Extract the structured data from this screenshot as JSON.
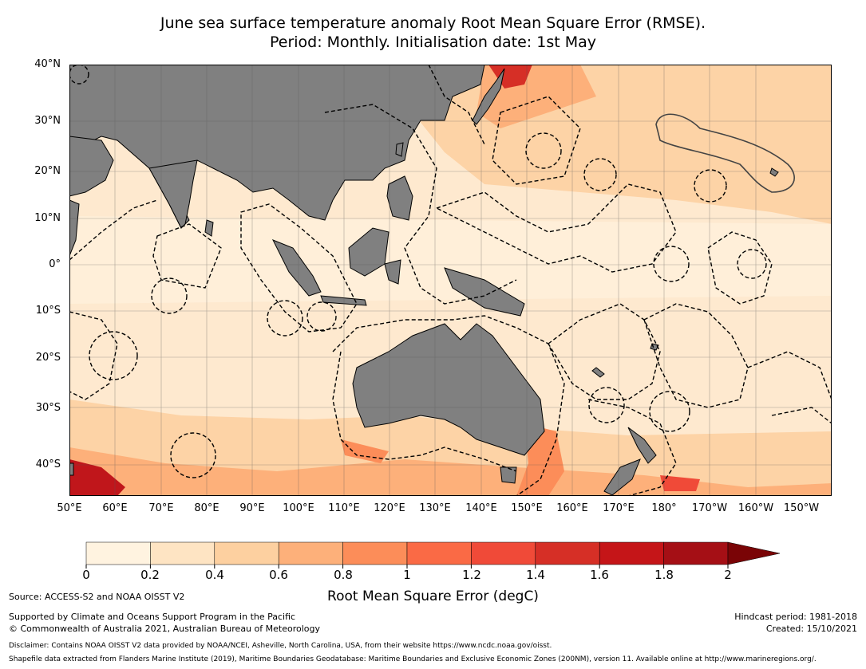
{
  "title_line1": "June sea surface temperature anomaly Root Mean Square Error (RMSE).",
  "title_line2": "Period: Monthly. Initialisation date: 1st May",
  "lat_labels": [
    "40°N",
    "30°N",
    "20°N",
    "10°N",
    "0°",
    "10°S",
    "20°S",
    "30°S",
    "40°S"
  ],
  "lon_labels": [
    "50°E",
    "60°E",
    "70°E",
    "80°E",
    "90°E",
    "100°E",
    "110°E",
    "120°E",
    "130°E",
    "140°E",
    "150°E",
    "160°E",
    "170°E",
    "180°",
    "170°W",
    "160°W",
    "150°W"
  ],
  "colorbar": {
    "label": "Root Mean Square Error (degC)",
    "ticks": [
      "0",
      "0.2",
      "0.4",
      "0.6",
      "0.8",
      "1",
      "1.2",
      "1.4",
      "1.6",
      "1.8",
      "2"
    ],
    "colors": [
      "#fff3e0",
      "#fee4c3",
      "#fdd0a0",
      "#fdb07a",
      "#fc8d59",
      "#fa6a45",
      "#f04a38",
      "#d62f26",
      "#c51518",
      "#a50f15",
      "#7a0406"
    ],
    "extend": "max"
  },
  "map_colors": {
    "land": "#808080",
    "ocean_low": "#fee9cf",
    "ocean_mid": "#fdd3a6",
    "ocean_high": "#fb8f5c",
    "ocean_max": "#c0161b"
  },
  "footer": {
    "source": "Source: ACCESS-S2 and NOAA OISST V2",
    "supported": "Supported by Climate and Oceans Support Program in the Pacific",
    "copyright": "© Commonwealth of Australia 2021, Australian Bureau of Meteorology",
    "hindcast": "Hindcast period: 1981-2018",
    "created": "Created: 15/10/2021",
    "disclaimer": "Disclaimer: Contains NOAA OISST V2 data provided by NOAA/NCEI, Asheville, North Carolina, USA, from their website https://www.ncdc.noaa.gov/oisst.",
    "shapefile": "Shapefile data extracted from Flanders Marine Institute (2019), Maritime Boundaries Geodatabase: Maritime Boundaries and Exclusive Economic Zones (200NM), version 11. Available online at http://www.marineregions.org/."
  }
}
